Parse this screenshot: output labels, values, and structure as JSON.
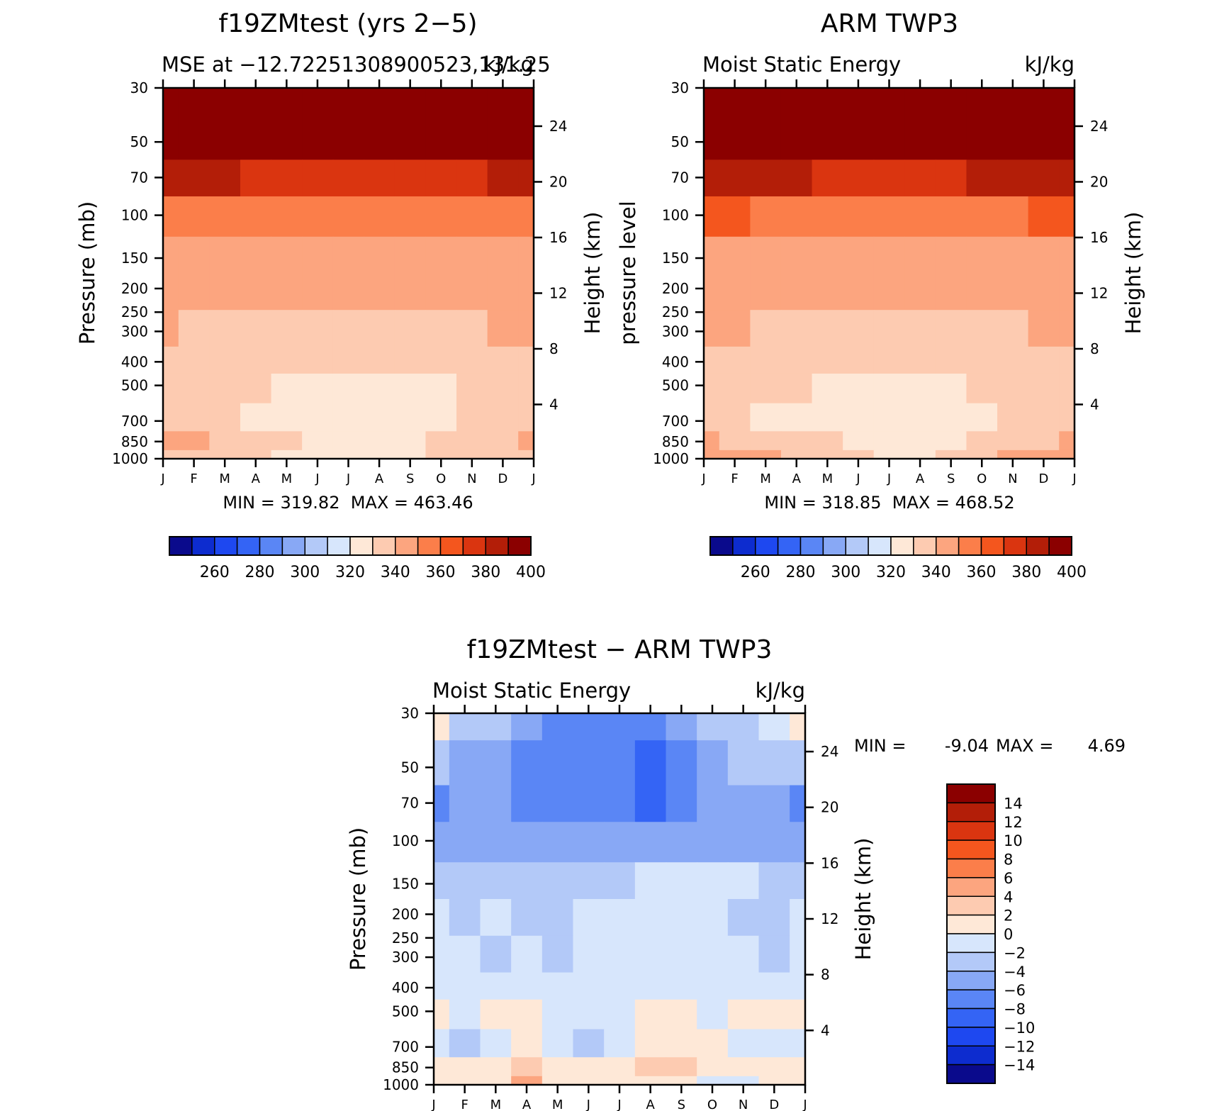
{
  "colors": {
    "abs_palette": [
      "#0a0a8c",
      "#0d2ccf",
      "#1e48f0",
      "#3464f5",
      "#5a86f5",
      "#88a8f5",
      "#b3c9f8",
      "#d7e6fc",
      "#fee8d7",
      "#fdcbb1",
      "#fca57f",
      "#fb7e4a",
      "#f4561e",
      "#da3510",
      "#b31e08",
      "#8b0000"
    ],
    "diff_palette": [
      "#0a0a8c",
      "#0d2ccf",
      "#1e48f0",
      "#3464f5",
      "#5a86f5",
      "#88a8f5",
      "#b3c9f8",
      "#d7e6fc",
      "#fee8d7",
      "#fdcbb1",
      "#fca57f",
      "#fb7e4a",
      "#f4561e",
      "#da3510",
      "#b31e08",
      "#8b0000"
    ]
  },
  "chart_data": [
    {
      "type": "heatmap",
      "panel": "model",
      "title": "f19ZMtest (yrs 2−5)",
      "subtitle_left": "MSE at −12.72251308900523,131.25",
      "subtitle_right": "kJ/kg",
      "ylabel": "Pressure (mb)",
      "ylabel_right": "Height (km)",
      "x": [
        "J",
        "F",
        "M",
        "A",
        "M",
        "J",
        "J",
        "A",
        "S",
        "O",
        "N",
        "D",
        "J"
      ],
      "y_ticks": [
        "30",
        "50",
        "70",
        "100",
        "150",
        "200",
        "250",
        "300",
        "400",
        "500",
        "700",
        "850",
        "1000"
      ],
      "y_right_ticks": [
        "24",
        "20",
        "16",
        "12",
        "8",
        "4"
      ],
      "ylim": [
        30,
        1000
      ],
      "yscale": "log",
      "levels": [
        250,
        260,
        270,
        280,
        290,
        300,
        310,
        320,
        330,
        340,
        350,
        360,
        370,
        380,
        390,
        400
      ],
      "stats": "MIN = 319.82  MAX = 463.46",
      "colorbar_labels": [
        "260",
        "280",
        "300",
        "320",
        "340",
        "360",
        "380",
        "400"
      ],
      "values_kJkg": {
        "pressure_levels": [
          30,
          50,
          70,
          100,
          150,
          200,
          300,
          400,
          500,
          700,
          850,
          1000
        ],
        "months": [
          "J",
          "F",
          "M",
          "A",
          "M",
          "J",
          "J",
          "A",
          "S",
          "O",
          "N",
          "D",
          "J"
        ],
        "data": [
          [
            440,
            440,
            440,
            440,
            440,
            440,
            440,
            440,
            440,
            440,
            440,
            440,
            440
          ],
          [
            395,
            396,
            395,
            393,
            392,
            391,
            391,
            391,
            392,
            393,
            394,
            395,
            395
          ],
          [
            380,
            381,
            380,
            378,
            377,
            376,
            376,
            376,
            377,
            378,
            379,
            380,
            380
          ],
          [
            358,
            357,
            355,
            353,
            352,
            351,
            351,
            351,
            352,
            353,
            355,
            358,
            358
          ],
          [
            346,
            346,
            346,
            345,
            345,
            345,
            345,
            345,
            345,
            345,
            346,
            346,
            346
          ],
          [
            345,
            344,
            343,
            343,
            342,
            341,
            341,
            341,
            341,
            342,
            343,
            344,
            345
          ],
          [
            340,
            336,
            336,
            335,
            334,
            333,
            333,
            333,
            333,
            334,
            337,
            340,
            340
          ],
          [
            336,
            335,
            334,
            333,
            332,
            331,
            331,
            331,
            331,
            332,
            333,
            334,
            336
          ],
          [
            334,
            333,
            331,
            330,
            328,
            328,
            328,
            328,
            328,
            329,
            331,
            333,
            334
          ],
          [
            333,
            332,
            330,
            327,
            325,
            324,
            323,
            324,
            325,
            327,
            330,
            332,
            333
          ],
          [
            340,
            340,
            336,
            334,
            330,
            327,
            327,
            327,
            328,
            331,
            336,
            339,
            340
          ],
          [
            336,
            336,
            334,
            331,
            329,
            328,
            328,
            328,
            329,
            332,
            335,
            336,
            336
          ]
        ]
      }
    },
    {
      "type": "heatmap",
      "panel": "observation",
      "title": "ARM TWP3",
      "subtitle_left": "Moist Static Energy",
      "subtitle_right": "kJ/kg",
      "ylabel": "pressure level",
      "ylabel_right": "Height (km)",
      "x": [
        "J",
        "F",
        "M",
        "A",
        "M",
        "J",
        "J",
        "A",
        "S",
        "O",
        "N",
        "D",
        "J"
      ],
      "y_ticks": [
        "30",
        "50",
        "70",
        "100",
        "150",
        "200",
        "250",
        "300",
        "400",
        "500",
        "700",
        "850",
        "1000"
      ],
      "y_right_ticks": [
        "24",
        "20",
        "16",
        "12",
        "8",
        "4"
      ],
      "ylim": [
        30,
        1000
      ],
      "yscale": "log",
      "levels": [
        250,
        260,
        270,
        280,
        290,
        300,
        310,
        320,
        330,
        340,
        350,
        360,
        370,
        380,
        390,
        400
      ],
      "stats": "MIN = 318.85  MAX = 468.52",
      "colorbar_labels": [
        "260",
        "280",
        "300",
        "320",
        "340",
        "360",
        "380",
        "400"
      ],
      "values_kJkg": {
        "pressure_levels": [
          30,
          50,
          70,
          100,
          150,
          200,
          300,
          400,
          500,
          700,
          850,
          1000
        ],
        "months": [
          "J",
          "F",
          "M",
          "A",
          "M",
          "J",
          "J",
          "A",
          "S",
          "O",
          "N",
          "D",
          "J"
        ],
        "data": [
          [
            445,
            445,
            445,
            445,
            445,
            445,
            445,
            445,
            445,
            445,
            445,
            445,
            445
          ],
          [
            398,
            397,
            396,
            395,
            394,
            393,
            393,
            393,
            394,
            395,
            396,
            397,
            398
          ],
          [
            383,
            382,
            381,
            380,
            379,
            378,
            378,
            378,
            379,
            380,
            381,
            382,
            383
          ],
          [
            361,
            360,
            359,
            358,
            357,
            356,
            356,
            356,
            357,
            358,
            359,
            360,
            361
          ],
          [
            348,
            348,
            347,
            347,
            347,
            346,
            346,
            346,
            347,
            347,
            348,
            348,
            348
          ],
          [
            346,
            345,
            345,
            344,
            343,
            342,
            342,
            342,
            343,
            344,
            345,
            345,
            346
          ],
          [
            341,
            340,
            339,
            337,
            335,
            333,
            332,
            332,
            333,
            336,
            338,
            340,
            341
          ],
          [
            339,
            337,
            335,
            333,
            331,
            330,
            330,
            330,
            331,
            333,
            335,
            337,
            339
          ],
          [
            336,
            335,
            333,
            330,
            328,
            327,
            327,
            327,
            328,
            330,
            333,
            335,
            336
          ],
          [
            334,
            332,
            329,
            326,
            323,
            322,
            321,
            322,
            324,
            327,
            330,
            332,
            334
          ],
          [
            341,
            339,
            336,
            333,
            330,
            328,
            327,
            327,
            329,
            332,
            336,
            339,
            341
          ],
          [
            344,
            343,
            340,
            336,
            332,
            330,
            329,
            329,
            331,
            335,
            340,
            343,
            344
          ]
        ]
      }
    },
    {
      "type": "heatmap",
      "panel": "difference",
      "title": "f19ZMtest − ARM TWP3",
      "subtitle_left": "Moist Static Energy",
      "subtitle_right": "kJ/kg",
      "ylabel": "Pressure (mb)",
      "ylabel_right": "Height (km)",
      "x": [
        "J",
        "F",
        "M",
        "A",
        "M",
        "J",
        "J",
        "A",
        "S",
        "O",
        "N",
        "D",
        "J"
      ],
      "y_ticks": [
        "30",
        "50",
        "70",
        "100",
        "150",
        "200",
        "250",
        "300",
        "400",
        "500",
        "700",
        "850",
        "1000"
      ],
      "y_right_ticks": [
        "24",
        "20",
        "16",
        "12",
        "8",
        "4"
      ],
      "ylim": [
        30,
        1000
      ],
      "yscale": "log",
      "levels": [
        -14,
        -12,
        -10,
        -8,
        -6,
        -4,
        -2,
        0,
        2,
        4,
        6,
        8,
        10,
        12,
        14
      ],
      "stats_min_label": "MIN =",
      "stats_min": "-9.04",
      "stats_max_label": "MAX =",
      "stats_max": "4.69",
      "colorbar_labels": [
        "14",
        "12",
        "10",
        "8",
        "6",
        "4",
        "2",
        "0",
        "−2",
        "−4",
        "−6",
        "−8",
        "−10",
        "−12",
        "−14"
      ],
      "values_kJkg": {
        "pressure_levels": [
          30,
          50,
          70,
          100,
          150,
          200,
          300,
          400,
          500,
          700,
          850,
          1000
        ],
        "months": [
          "J",
          "F",
          "M",
          "A",
          "M",
          "J",
          "J",
          "A",
          "S",
          "O",
          "N",
          "D",
          "J"
        ],
        "data": [
          [
            0.5,
            -3,
            -4,
            -6,
            -6.5,
            -7,
            -7,
            -7,
            -6,
            -4,
            -3,
            -1,
            0.5
          ],
          [
            -4,
            -5,
            -6,
            -7,
            -7,
            -7,
            -7,
            -8.5,
            -7,
            -5,
            -4,
            -4,
            -4
          ],
          [
            -7.5,
            -6,
            -6,
            -7,
            -7,
            -7,
            -7,
            -9,
            -7,
            -6,
            -5,
            -5,
            -7.5
          ],
          [
            -5,
            -5,
            -5,
            -5,
            -5,
            -5,
            -5,
            -5,
            -5,
            -5,
            -5,
            -5,
            -5
          ],
          [
            -3,
            -3,
            -3,
            -3,
            -3,
            -3,
            -3,
            -2,
            -1,
            -1,
            -2,
            -3,
            -3
          ],
          [
            -1,
            -3,
            -1,
            -3,
            -3,
            -1,
            -1,
            -1,
            -1,
            -1,
            -3,
            -3,
            -1
          ],
          [
            -1,
            -1,
            -3,
            -1,
            -3,
            -1,
            -1,
            -1,
            -1,
            -1,
            -1,
            -3,
            -1
          ],
          [
            -1,
            -1,
            -1,
            -1,
            -1,
            -1,
            -1,
            -1,
            -1,
            -1,
            -1,
            -1,
            -1
          ],
          [
            1,
            -1,
            1,
            1,
            -1,
            -1,
            -1,
            1,
            1,
            -1,
            1,
            1,
            1
          ],
          [
            -1,
            -3,
            -1,
            1,
            -1,
            -3,
            -1,
            1,
            1,
            1,
            -1,
            -1,
            -1
          ],
          [
            1,
            1,
            1,
            3,
            1,
            1,
            1,
            3,
            3,
            1,
            1,
            1,
            1
          ],
          [
            1,
            1,
            1,
            4,
            1,
            1,
            1,
            1,
            1,
            -1,
            -1,
            1,
            1
          ]
        ]
      }
    }
  ]
}
